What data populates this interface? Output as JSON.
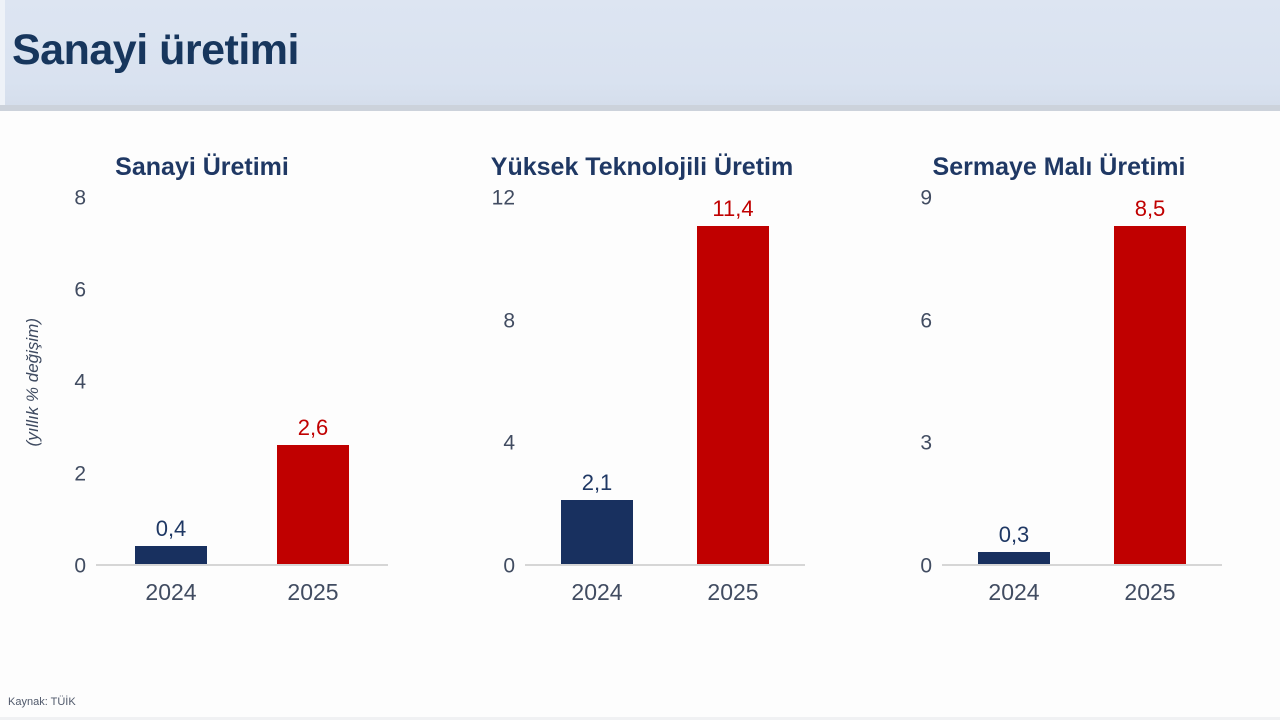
{
  "header": {
    "title": "Sanayi üretimi"
  },
  "footer": {
    "source": "Kaynak: TÜİK"
  },
  "colors": {
    "header_bg": "#d9e2f0",
    "header_text": "#17365d",
    "navy_bar": "#18305f",
    "red_bar": "#c00000",
    "tick_text": "#414c61",
    "axis_line": "#d6d6d6"
  },
  "chart_data": [
    {
      "type": "bar",
      "title": "Sanayi Üretimi",
      "ylabel": "(yıllık % değişim)",
      "categories": [
        "2024",
        "2025"
      ],
      "values": [
        0.4,
        2.6
      ],
      "value_labels": [
        "0,4",
        "2,6"
      ],
      "bar_colors": [
        "#18305f",
        "#c00000"
      ],
      "label_colors": [
        "#1f3864",
        "#c00000"
      ],
      "ylim": [
        0,
        8
      ],
      "yticks": [
        0,
        2,
        4,
        6,
        8
      ],
      "grid": false,
      "legend": "none"
    },
    {
      "type": "bar",
      "title": "Yüksek Teknolojili Üretim",
      "ylabel": "",
      "categories": [
        "2024",
        "2025"
      ],
      "values": [
        2.1,
        11.4
      ],
      "value_labels": [
        "2,1",
        "11,4"
      ],
      "bar_colors": [
        "#18305f",
        "#c00000"
      ],
      "label_colors": [
        "#1f3864",
        "#c00000"
      ],
      "ylim": [
        0,
        12
      ],
      "yticks": [
        0,
        4,
        8,
        12
      ],
      "grid": false,
      "legend": "none"
    },
    {
      "type": "bar",
      "title": "Sermaye Malı Üretimi",
      "ylabel": "",
      "categories": [
        "2024",
        "2025"
      ],
      "values": [
        0.3,
        8.5
      ],
      "value_labels": [
        "0,3",
        "8,5"
      ],
      "bar_colors": [
        "#18305f",
        "#c00000"
      ],
      "label_colors": [
        "#1f3864",
        "#c00000"
      ],
      "ylim": [
        0,
        9
      ],
      "yticks": [
        0,
        3,
        6,
        9
      ],
      "grid": false,
      "legend": "none"
    }
  ]
}
